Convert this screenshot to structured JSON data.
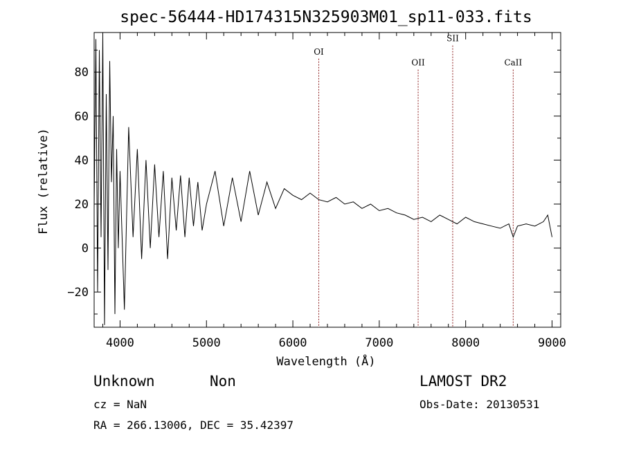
{
  "chart_data": {
    "type": "line",
    "title": "spec-56444-HD174315N325903M01_sp11-033.fits",
    "xlabel": "Wavelength (Å)",
    "ylabel": "Flux (relative)",
    "xlim": [
      3700,
      9100
    ],
    "ylim": [
      -36,
      98
    ],
    "x_ticks": [
      4000,
      5000,
      6000,
      7000,
      8000,
      9000
    ],
    "y_ticks": [
      -20,
      0,
      20,
      40,
      60,
      80
    ],
    "x_tick_labels": [
      "4000",
      "5000",
      "6000",
      "7000",
      "8000",
      "9000"
    ],
    "y_tick_labels": [
      "−20",
      "0",
      "20",
      "40",
      "60",
      "80"
    ],
    "grid": false,
    "series": [
      {
        "x": [
          3700,
          3720,
          3740,
          3760,
          3780,
          3800,
          3820,
          3840,
          3860,
          3880,
          3900,
          3920,
          3940,
          3960,
          3980,
          4000,
          4050,
          4100,
          4150,
          4200,
          4250,
          4300,
          4350,
          4400,
          4450,
          4500,
          4550,
          4600,
          4650,
          4700,
          4750,
          4800,
          4850,
          4900,
          4950,
          5000,
          5100,
          5200,
          5300,
          5400,
          5500,
          5600,
          5700,
          5800,
          5900,
          6000,
          6100,
          6200,
          6300,
          6400,
          6500,
          6600,
          6700,
          6800,
          6900,
          7000,
          7100,
          7200,
          7300,
          7400,
          7500,
          7600,
          7700,
          7800,
          7900,
          8000,
          8100,
          8200,
          8300,
          8400,
          8500,
          8550,
          8600,
          8700,
          8800,
          8900,
          8950,
          9000
        ],
        "y": [
          18,
          95,
          -20,
          90,
          5,
          97,
          -35,
          70,
          -10,
          85,
          30,
          60,
          -30,
          45,
          0,
          35,
          -28,
          55,
          5,
          45,
          -5,
          40,
          0,
          38,
          5,
          35,
          -5,
          32,
          8,
          33,
          5,
          32,
          10,
          30,
          8,
          20,
          35,
          10,
          32,
          12,
          35,
          15,
          30,
          18,
          27,
          24,
          22,
          25,
          22,
          21,
          23,
          20,
          21,
          18,
          20,
          17,
          18,
          16,
          15,
          13,
          14,
          12,
          15,
          13,
          11,
          14,
          12,
          11,
          10,
          9,
          11,
          5,
          10,
          11,
          10,
          12,
          15,
          5
        ]
      }
    ],
    "annotations": [
      {
        "label": "OI",
        "x": 6300,
        "label_y": 88
      },
      {
        "label": "OII",
        "x": 7450,
        "label_y": 83
      },
      {
        "label": "SII",
        "x": 7850,
        "label_y": 94
      },
      {
        "label": "CaII",
        "x": 8550,
        "label_y": 83
      }
    ],
    "annotation_color": "#8b1a1a"
  },
  "footer": {
    "object": "Unknown",
    "class": "Non",
    "survey": "LAMOST DR2",
    "cz": "cz = NaN",
    "obs_date": "Obs-Date: 20130531",
    "coords": "RA = 266.13006, DEC =  35.42397"
  }
}
